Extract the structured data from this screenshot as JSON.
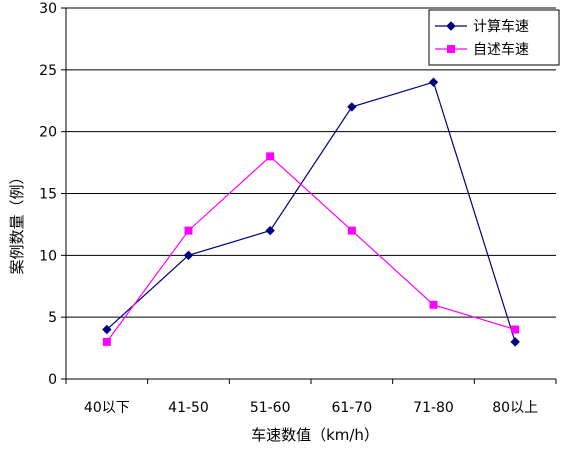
{
  "chart_data": {
    "type": "line",
    "categories": [
      "40以下",
      "41-50",
      "51-60",
      "61-70",
      "71-80",
      "80以上"
    ],
    "series": [
      {
        "name": "计算车速",
        "values": [
          4,
          10,
          12,
          22,
          24,
          3
        ],
        "color": "#000080",
        "marker": "diamond"
      },
      {
        "name": "自述车速",
        "values": [
          3,
          12,
          18,
          12,
          6,
          4
        ],
        "color": "#ff00ff",
        "marker": "square"
      }
    ],
    "xlabel": "车速数值（km/h）",
    "ylabel": "案例数量（例）",
    "ylim": [
      0,
      30
    ],
    "yticks": [
      0,
      5,
      10,
      15,
      20,
      25,
      30
    ],
    "grid": true,
    "legend": "top-right"
  }
}
